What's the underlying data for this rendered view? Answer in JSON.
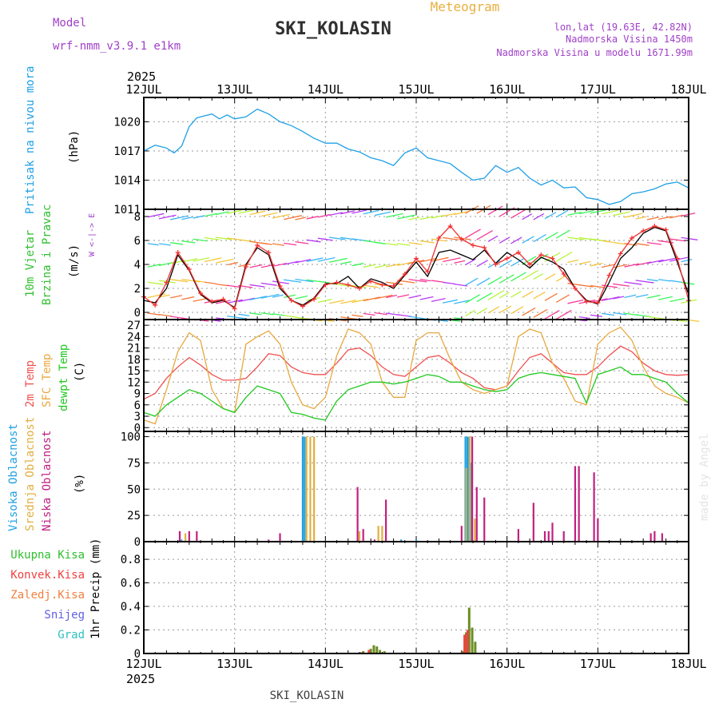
{
  "header": {
    "model_label": "Model",
    "model_name": "wrf-nmm_v3.9.1 e1km",
    "station": "SKI_KOLASIN",
    "product": "Meteogram",
    "lonlat": "lon,lat (19.63E, 42.82N)",
    "elevation": "Nadmorska Visina 1450m",
    "model_elevation": "Nadmorska Visina u modelu 1671.99m",
    "footer_station": "SKI_KOLASIN",
    "credit": "made by Angel"
  },
  "time_axis": {
    "year_top": "2025",
    "year_bottom": "2025",
    "labels": [
      "12JUL",
      "13JUL",
      "14JUL",
      "15JUL",
      "16JUL",
      "17JUL",
      "18JUL"
    ],
    "range_hours": [
      0,
      144
    ]
  },
  "colors": {
    "pressure": "#1ea0e6",
    "model_label": "#a040c8",
    "product": "#e8b040",
    "temp2m": "#f05050",
    "sfc_temp": "#e8a840",
    "dewpt": "#20c820",
    "cloud_high": "#20a0e0",
    "cloud_mid": "#e0b040",
    "cloud_low": "#c02080",
    "rain_total": "#30c030",
    "rain_conv": "#f04040",
    "rain_frozen": "#f08040",
    "snow": "#6060e0",
    "hail": "#30c0c0",
    "wind_speed": "#000000",
    "wind_gust": "#f03030"
  },
  "chart_data": [
    {
      "type": "line",
      "panel": "pressure",
      "ylabels": [
        "Pritisak na nivou mora",
        "(hPa)"
      ],
      "yticks": [
        1011,
        1014,
        1017,
        1020
      ],
      "ylim": [
        1011,
        1022.5
      ],
      "grid": true,
      "series": [
        {
          "name": "Pritisak na nivou mora",
          "x": [
            0,
            3,
            6,
            8,
            10,
            12,
            14,
            16,
            18,
            20,
            22,
            24,
            27,
            30,
            33,
            36,
            39,
            42,
            45,
            48,
            51,
            54,
            57,
            60,
            63,
            66,
            69,
            72,
            75,
            78,
            81,
            84,
            87,
            90,
            93,
            96,
            99,
            102,
            105,
            108,
            111,
            114,
            117,
            120,
            123,
            126,
            129,
            132,
            135,
            138,
            141,
            144
          ],
          "values": [
            1017,
            1017.6,
            1017.3,
            1016.8,
            1017.5,
            1019.5,
            1020.4,
            1020.6,
            1020.8,
            1020.3,
            1020.7,
            1020.3,
            1020.5,
            1021.3,
            1020.8,
            1020,
            1019.6,
            1019,
            1018.3,
            1017.8,
            1017.8,
            1017.2,
            1016.9,
            1016.3,
            1016,
            1015.5,
            1016.8,
            1017.3,
            1016.3,
            1016,
            1015.7,
            1014.8,
            1014,
            1014.2,
            1015.5,
            1014.8,
            1015.3,
            1014.2,
            1013.5,
            1014,
            1013.2,
            1013.3,
            1012.2,
            1012,
            1011.5,
            1011.8,
            1012.6,
            1012.8,
            1013.1,
            1013.6,
            1013.8,
            1013.2
          ]
        }
      ]
    },
    {
      "type": "line",
      "panel": "wind",
      "ylabels": [
        "10m Vjetar",
        "Brzina i Pravac",
        "(m/s)"
      ],
      "direction_key": "W <-|-> E",
      "yticks": [
        0,
        2,
        4,
        6,
        8
      ],
      "ylim": [
        -0.6,
        8.6
      ],
      "grid": true,
      "series": [
        {
          "name": "speed",
          "x": [
            0,
            3,
            6,
            9,
            12,
            15,
            18,
            21,
            24,
            27,
            30,
            33,
            36,
            39,
            42,
            45,
            48,
            51,
            54,
            57,
            60,
            63,
            66,
            69,
            72,
            75,
            78,
            81,
            84,
            87,
            90,
            93,
            96,
            99,
            102,
            105,
            108,
            111,
            114,
            117,
            120,
            123,
            126,
            129,
            132,
            135,
            138,
            141,
            144
          ],
          "values": [
            1,
            0.8,
            2,
            4.8,
            3.5,
            1.5,
            0.8,
            1,
            0.4,
            4,
            5.4,
            4.8,
            2,
            1,
            0.6,
            1.2,
            2.4,
            2.4,
            3,
            2,
            2.8,
            2.5,
            2,
            3.1,
            4.2,
            3,
            5,
            5.2,
            4.8,
            4.4,
            5.2,
            4.1,
            5,
            4.4,
            3.7,
            4.6,
            4.2,
            3.6,
            2,
            1,
            0.7,
            2.5,
            4.5,
            5.4,
            6.6,
            7.1,
            6.8,
            4.2,
            1.5
          ]
        },
        {
          "name": "gust",
          "x": [
            0,
            3,
            6,
            9,
            12,
            15,
            18,
            21,
            24,
            27,
            30,
            33,
            36,
            39,
            42,
            45,
            48,
            51,
            54,
            57,
            60,
            63,
            66,
            69,
            72,
            75,
            78,
            81,
            84,
            87,
            90,
            93,
            96,
            99,
            102,
            105,
            108,
            111,
            114,
            117,
            120,
            123,
            126,
            129,
            132,
            135,
            138,
            141,
            144
          ],
          "values": [
            1.3,
            0.6,
            2.5,
            5,
            3.6,
            1.6,
            0.9,
            1.1,
            0.3,
            3.8,
            5.6,
            5,
            2.2,
            1,
            0.5,
            1.1,
            2.3,
            2.5,
            2.3,
            2,
            2.6,
            2.3,
            2.2,
            3.2,
            4.5,
            3.4,
            6.2,
            7.2,
            6.1,
            5.6,
            5.4,
            4,
            4.5,
            5,
            4,
            4.8,
            4.5,
            3.2,
            2,
            0.9,
            0.8,
            3.1,
            4.9,
            6.2,
            6.8,
            7.2,
            6.9,
            4.5,
            1
          ]
        }
      ]
    },
    {
      "type": "line",
      "panel": "temperature",
      "ylabels": [
        "2m Temp",
        "SFC Temp",
        "dewpt Temp",
        "(C)"
      ],
      "yticks": [
        0,
        3,
        6,
        9,
        12,
        15,
        18,
        21,
        24,
        27
      ],
      "ylim": [
        -1,
        28.5
      ],
      "grid": true,
      "series": [
        {
          "name": "2m Temp",
          "x": [
            0,
            3,
            6,
            9,
            12,
            15,
            18,
            21,
            24,
            27,
            30,
            33,
            36,
            39,
            42,
            45,
            48,
            51,
            54,
            57,
            60,
            63,
            66,
            69,
            72,
            75,
            78,
            81,
            84,
            87,
            90,
            93,
            96,
            99,
            102,
            105,
            108,
            111,
            114,
            117,
            120,
            123,
            126,
            129,
            132,
            135,
            138,
            141,
            144
          ],
          "values": [
            7.5,
            9,
            13,
            16,
            18.5,
            16.5,
            14,
            12.5,
            12.5,
            13,
            16,
            19.5,
            19,
            16,
            14.5,
            14,
            14,
            17,
            20.5,
            21,
            19,
            16,
            14,
            13.5,
            16,
            18.5,
            19,
            17,
            14.5,
            13,
            10.5,
            10,
            11,
            15,
            18.5,
            19.5,
            17,
            14.5,
            14,
            14,
            16,
            19,
            21.5,
            20,
            17,
            15,
            14,
            13.8,
            14
          ]
        },
        {
          "name": "SFC Temp",
          "x": [
            0,
            3,
            6,
            9,
            12,
            15,
            18,
            21,
            24,
            27,
            30,
            33,
            36,
            39,
            42,
            45,
            48,
            51,
            54,
            57,
            60,
            63,
            66,
            69,
            72,
            75,
            78,
            81,
            84,
            87,
            90,
            93,
            96,
            99,
            102,
            105,
            108,
            111,
            114,
            117,
            120,
            123,
            126,
            129,
            132,
            135,
            138,
            141,
            144
          ],
          "values": [
            2,
            1,
            10,
            20,
            25,
            23,
            10,
            5,
            4,
            22,
            24,
            25.5,
            22,
            12,
            6,
            5,
            8,
            19,
            26,
            25,
            22,
            12,
            8,
            8,
            23,
            25,
            25,
            18,
            12,
            10,
            9,
            10,
            11,
            24,
            26,
            25,
            17,
            13,
            7,
            6,
            22,
            25,
            26.5,
            23,
            16,
            11,
            9,
            8,
            6.5
          ]
        },
        {
          "name": "dewpt Temp",
          "x": [
            0,
            3,
            6,
            9,
            12,
            15,
            18,
            21,
            24,
            27,
            30,
            33,
            36,
            39,
            42,
            45,
            48,
            51,
            54,
            57,
            60,
            63,
            66,
            69,
            72,
            75,
            78,
            81,
            84,
            87,
            90,
            93,
            96,
            99,
            102,
            105,
            108,
            111,
            114,
            117,
            120,
            123,
            126,
            129,
            132,
            135,
            138,
            141,
            144
          ],
          "values": [
            4,
            3,
            6,
            8,
            10,
            9,
            7,
            5,
            4,
            8,
            11,
            10,
            9,
            4,
            3.5,
            2.5,
            2,
            7,
            10,
            11,
            12,
            12,
            11.5,
            12,
            13,
            14,
            13.5,
            12,
            12,
            11,
            10,
            9.5,
            10,
            13,
            14,
            14.5,
            14,
            13.5,
            13,
            6.5,
            14,
            15,
            16,
            14,
            14,
            13,
            12,
            9,
            6.5
          ]
        }
      ]
    },
    {
      "type": "bar",
      "panel": "clouds",
      "ylabels": [
        "Visoka Oblacnost",
        "Srednja Oblacnost",
        "Niska Oblacnost",
        "(%)"
      ],
      "yticks": [
        0,
        25,
        50,
        75,
        100
      ],
      "ylim": [
        0,
        105
      ],
      "grid": true,
      "series": [
        {
          "name": "Visoka Oblacnost",
          "x": [
            10,
            42,
            42.5,
            68,
            72,
            85,
            85.5,
            86,
            86.5
          ],
          "values": [
            2,
            100,
            100,
            2,
            2,
            100,
            100,
            100,
            75
          ]
        },
        {
          "name": "Srednja Oblacnost",
          "x": [
            11,
            43,
            44,
            45,
            57,
            62,
            63,
            85.2,
            86.2,
            87.5
          ],
          "values": [
            8,
            100,
            100,
            100,
            10,
            15,
            15,
            70,
            100,
            22
          ]
        },
        {
          "name": "Niska Oblacnost",
          "x": [
            9.5,
            12,
            14,
            33,
            36,
            56.5,
            58,
            61,
            64,
            84,
            86.8,
            88,
            90,
            99,
            103,
            106,
            107,
            108,
            111,
            114,
            115,
            119,
            120,
            134,
            135,
            137
          ],
          "values": [
            10,
            10,
            10,
            2,
            8,
            52,
            12,
            2,
            40,
            15,
            100,
            52,
            42,
            12,
            37,
            10,
            10,
            18,
            10,
            72,
            72,
            66,
            22,
            8,
            10,
            8
          ]
        }
      ]
    },
    {
      "type": "bar",
      "panel": "precip",
      "ylabels": [
        "Ukupna Kisa",
        "Konvek.Kisa",
        "Zaledj.Kisa",
        "Snijeg",
        "Grad",
        "1hr Precip (mm)"
      ],
      "yticks": [
        0,
        0.2,
        0.4,
        0.6,
        0.8
      ],
      "ylim": [
        0,
        0.95
      ],
      "grid": true,
      "series": [
        {
          "name": "Ukupna Kisa",
          "x": [
            58,
            60,
            60.8,
            61.6,
            62.4,
            63.6,
            84.4,
            85.2,
            86,
            86.8,
            87.6,
            115.3
          ],
          "values": [
            0.02,
            0.04,
            0.07,
            0.06,
            0.03,
            0.02,
            0.02,
            0.18,
            0.39,
            0.22,
            0.1,
            0.01
          ]
        },
        {
          "name": "Konvek.Kisa",
          "x": [
            57.5,
            59.5,
            84,
            84.8,
            85.6
          ],
          "values": [
            0.01,
            0.03,
            0.01,
            0.16,
            0.2
          ]
        },
        {
          "name": "Zaledj.Kisa",
          "x": [],
          "values": []
        },
        {
          "name": "Snijeg",
          "x": [],
          "values": []
        },
        {
          "name": "Grad",
          "x": [],
          "values": []
        }
      ]
    }
  ]
}
